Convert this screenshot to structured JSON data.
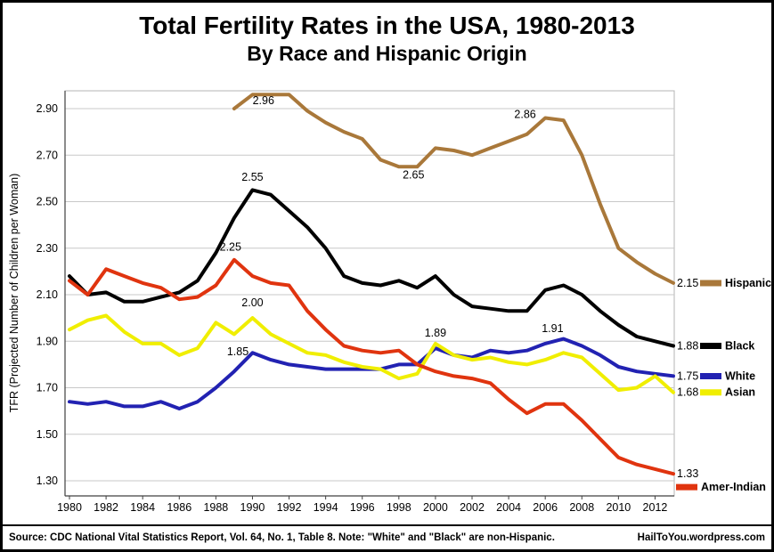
{
  "title": "Total Fertility Rates in the USA, 1980-2013",
  "subtitle": "By Race and Hispanic Origin",
  "footer": {
    "source": "Source: CDC National Vital Statistics Report, Vol. 64, No. 1, Table 8.   Note: \"White\" and \"Black\" are non-Hispanic.",
    "watermark": "HailToYou.wordpress.com"
  },
  "chart_data": {
    "type": "line",
    "title": "Total Fertility Rates in the USA, 1980-2013",
    "subtitle": "By Race and Hispanic Origin",
    "xlabel": "",
    "ylabel": "TFR (Projected Number of Children per Woman)",
    "grid": "horizontal",
    "legend_position": "right",
    "ylim": [
      1.3,
      2.9
    ],
    "yticks": [
      "1.30",
      "1.50",
      "1.70",
      "1.90",
      "2.10",
      "2.30",
      "2.50",
      "2.70",
      "2.90"
    ],
    "x_tick_step": 2,
    "x": [
      1980,
      1981,
      1982,
      1983,
      1984,
      1985,
      1986,
      1987,
      1988,
      1989,
      1990,
      1991,
      1992,
      1993,
      1994,
      1995,
      1996,
      1997,
      1998,
      1999,
      2000,
      2001,
      2002,
      2003,
      2004,
      2005,
      2006,
      2007,
      2008,
      2009,
      2010,
      2011,
      2012,
      2013
    ],
    "series": [
      {
        "name": "Hispanic",
        "color": "#A9783A",
        "end_label": "2.15",
        "values": [
          null,
          null,
          null,
          null,
          null,
          null,
          null,
          null,
          null,
          2.9,
          2.96,
          2.96,
          2.96,
          2.89,
          2.84,
          2.8,
          2.77,
          2.68,
          2.65,
          2.65,
          2.73,
          2.72,
          2.7,
          2.73,
          2.76,
          2.79,
          2.86,
          2.85,
          2.7,
          2.49,
          2.3,
          2.24,
          2.19,
          2.15
        ]
      },
      {
        "name": "Black",
        "color": "#000000",
        "end_label": "1.88",
        "values": [
          2.18,
          2.1,
          2.11,
          2.07,
          2.07,
          2.09,
          2.11,
          2.16,
          2.28,
          2.43,
          2.55,
          2.53,
          2.46,
          2.39,
          2.3,
          2.18,
          2.15,
          2.14,
          2.16,
          2.13,
          2.18,
          2.1,
          2.05,
          2.04,
          2.03,
          2.03,
          2.12,
          2.14,
          2.1,
          2.03,
          1.97,
          1.92,
          1.9,
          1.88
        ]
      },
      {
        "name": "White",
        "color": "#2222B2",
        "end_label": "1.75",
        "values": [
          1.64,
          1.63,
          1.64,
          1.62,
          1.62,
          1.64,
          1.61,
          1.64,
          1.7,
          1.77,
          1.85,
          1.82,
          1.8,
          1.79,
          1.78,
          1.78,
          1.78,
          1.78,
          1.8,
          1.8,
          1.87,
          1.84,
          1.83,
          1.86,
          1.85,
          1.86,
          1.89,
          1.91,
          1.88,
          1.84,
          1.79,
          1.77,
          1.76,
          1.75
        ]
      },
      {
        "name": "Asian",
        "color": "#F0EE00",
        "end_label": "1.68",
        "values": [
          1.95,
          1.99,
          2.01,
          1.94,
          1.89,
          1.89,
          1.84,
          1.87,
          1.98,
          1.93,
          2.0,
          1.93,
          1.89,
          1.85,
          1.84,
          1.81,
          1.79,
          1.78,
          1.74,
          1.76,
          1.89,
          1.84,
          1.82,
          1.83,
          1.81,
          1.8,
          1.82,
          1.85,
          1.83,
          1.76,
          1.69,
          1.7,
          1.75,
          1.68
        ]
      },
      {
        "name": "Amer-Indian",
        "color": "#E0340F",
        "end_label": "1.33",
        "legend_below": true,
        "values": [
          2.16,
          2.1,
          2.21,
          2.18,
          2.15,
          2.13,
          2.08,
          2.09,
          2.14,
          2.25,
          2.18,
          2.15,
          2.14,
          2.03,
          1.95,
          1.88,
          1.86,
          1.85,
          1.86,
          1.8,
          1.77,
          1.75,
          1.74,
          1.72,
          1.65,
          1.59,
          1.63,
          1.63,
          1.56,
          1.48,
          1.4,
          1.37,
          1.35,
          1.33
        ]
      }
    ],
    "annotations": [
      {
        "text": "2.96",
        "year": 1990.6,
        "value": 2.92
      },
      {
        "text": "2.65",
        "year": 1998.8,
        "value": 2.6
      },
      {
        "text": "2.86",
        "year": 2004.9,
        "value": 2.86
      },
      {
        "text": "2.55",
        "year": 1990.0,
        "value": 2.59
      },
      {
        "text": "2.25",
        "year": 1988.8,
        "value": 2.29
      },
      {
        "text": "2.00",
        "year": 1990.0,
        "value": 2.05
      },
      {
        "text": "1.85",
        "year": 1989.2,
        "value": 1.84
      },
      {
        "text": "1.89",
        "year": 2000.0,
        "value": 1.92
      },
      {
        "text": "1.91",
        "year": 2006.4,
        "value": 1.94
      }
    ]
  }
}
